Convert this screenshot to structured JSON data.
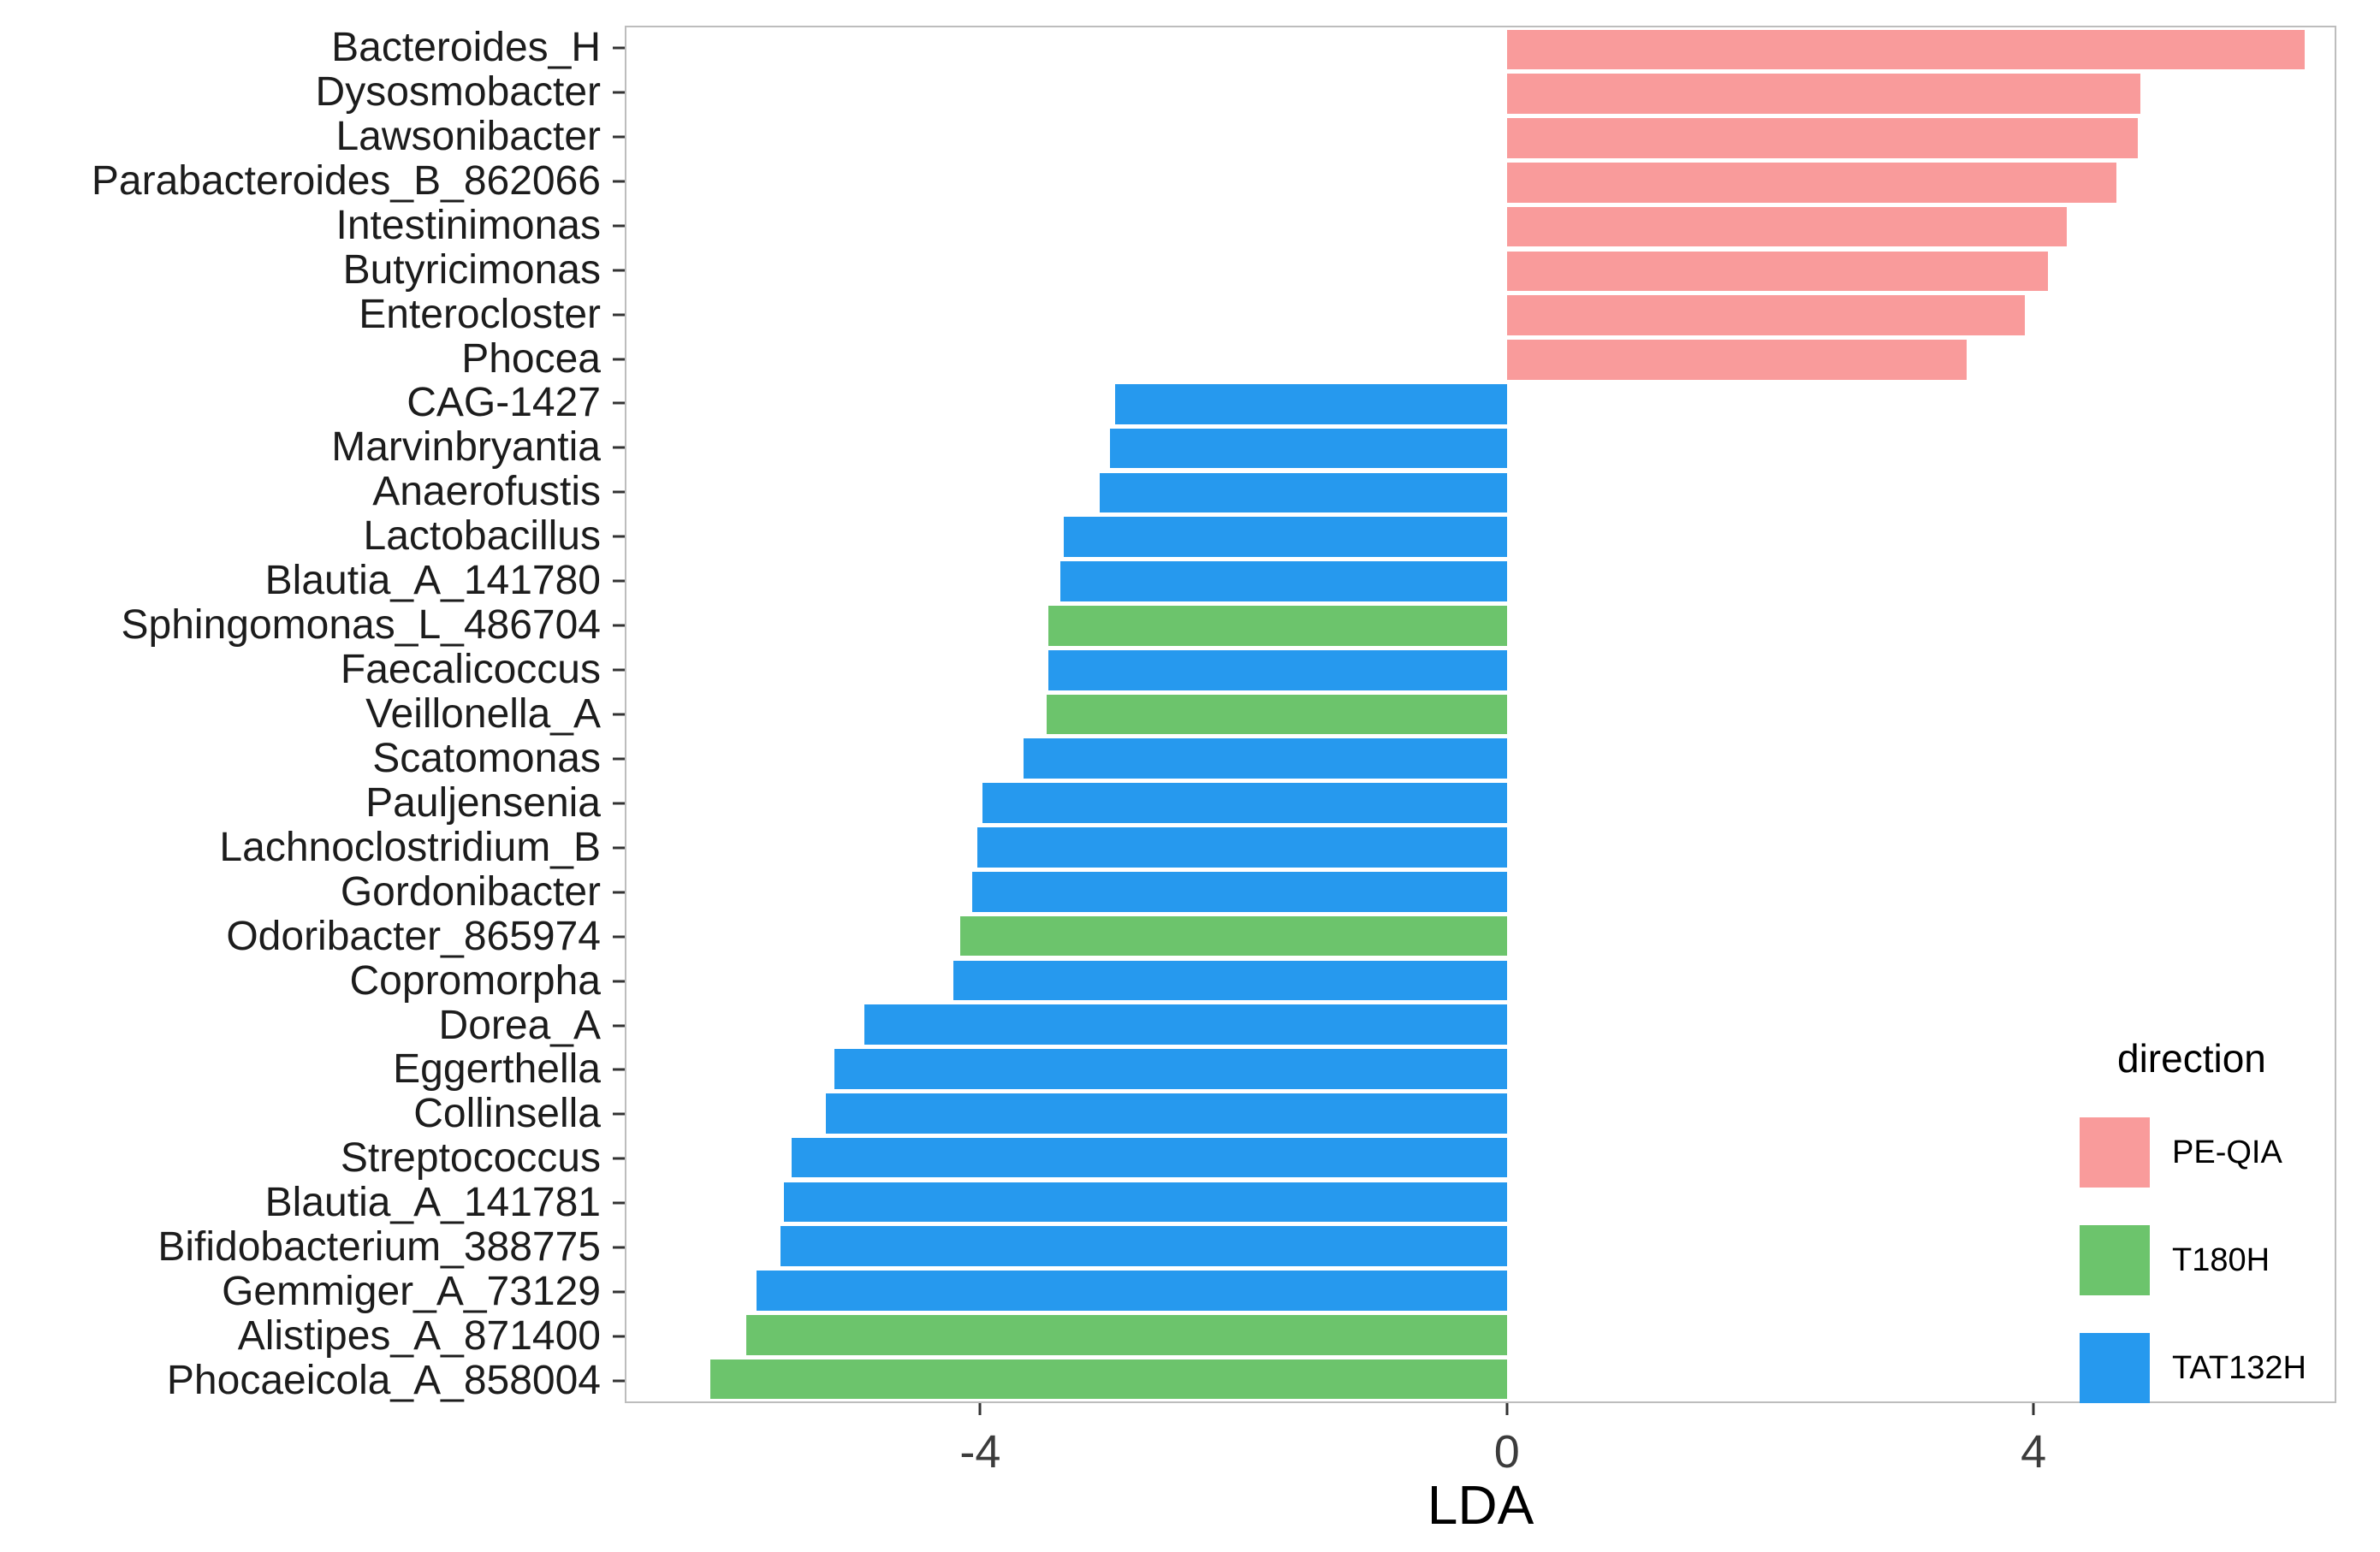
{
  "chart_data": {
    "type": "bar",
    "orientation": "horizontal",
    "title": "",
    "xlabel": "LDA",
    "ylabel": "",
    "xlim": [
      -6.7,
      6.3
    ],
    "x_ticks": [
      -4,
      0,
      4
    ],
    "grid": false,
    "legend": {
      "title": "direction",
      "position": "inside-right",
      "items": [
        {
          "label": "PE-QIA",
          "color": "#F99B9B"
        },
        {
          "label": "T180H",
          "color": "#6CC46C"
        },
        {
          "label": "TAT132H",
          "color": "#2699EE"
        }
      ]
    },
    "bars": [
      {
        "label": "Bacteroides_H",
        "value": 6.07,
        "direction": "PE-QIA"
      },
      {
        "label": "Dysosmobacter",
        "value": 4.82,
        "direction": "PE-QIA"
      },
      {
        "label": "Lawsonibacter",
        "value": 4.8,
        "direction": "PE-QIA"
      },
      {
        "label": "Parabacteroides_B_862066",
        "value": 4.64,
        "direction": "PE-QIA"
      },
      {
        "label": "Intestinimonas",
        "value": 4.26,
        "direction": "PE-QIA"
      },
      {
        "label": "Butyricimonas",
        "value": 4.12,
        "direction": "PE-QIA"
      },
      {
        "label": "Enterocloster",
        "value": 3.94,
        "direction": "PE-QIA"
      },
      {
        "label": "Phocea",
        "value": 3.5,
        "direction": "PE-QIA"
      },
      {
        "label": "CAG-1427",
        "value": -2.98,
        "direction": "TAT132H"
      },
      {
        "label": "Marvinbryantia",
        "value": -3.02,
        "direction": "TAT132H"
      },
      {
        "label": "Anaerofustis",
        "value": -3.1,
        "direction": "TAT132H"
      },
      {
        "label": "Lactobacillus",
        "value": -3.37,
        "direction": "TAT132H"
      },
      {
        "label": "Blautia_A_141780",
        "value": -3.4,
        "direction": "TAT132H"
      },
      {
        "label": "Sphingomonas_L_486704",
        "value": -3.49,
        "direction": "T180H"
      },
      {
        "label": "Faecalicoccus",
        "value": -3.49,
        "direction": "TAT132H"
      },
      {
        "label": "Veillonella_A",
        "value": -3.5,
        "direction": "T180H"
      },
      {
        "label": "Scatomonas",
        "value": -3.68,
        "direction": "TAT132H"
      },
      {
        "label": "Pauljensenia",
        "value": -3.99,
        "direction": "TAT132H"
      },
      {
        "label": "Lachnoclostridium_B",
        "value": -4.03,
        "direction": "TAT132H"
      },
      {
        "label": "Gordonibacter",
        "value": -4.07,
        "direction": "TAT132H"
      },
      {
        "label": "Odoribacter_865974",
        "value": -4.16,
        "direction": "T180H"
      },
      {
        "label": "Copromorpha",
        "value": -4.21,
        "direction": "TAT132H"
      },
      {
        "label": "Dorea_A",
        "value": -4.89,
        "direction": "TAT132H"
      },
      {
        "label": "Eggerthella",
        "value": -5.12,
        "direction": "TAT132H"
      },
      {
        "label": "Collinsella",
        "value": -5.18,
        "direction": "TAT132H"
      },
      {
        "label": "Streptococcus",
        "value": -5.44,
        "direction": "TAT132H"
      },
      {
        "label": "Blautia_A_141781",
        "value": -5.5,
        "direction": "TAT132H"
      },
      {
        "label": "Bifidobacterium_388775",
        "value": -5.53,
        "direction": "TAT132H"
      },
      {
        "label": "Gemmiger_A_73129",
        "value": -5.71,
        "direction": "TAT132H"
      },
      {
        "label": "Alistipes_A_871400",
        "value": -5.79,
        "direction": "T180H"
      },
      {
        "label": "Phocaeicola_A_858004",
        "value": -6.06,
        "direction": "T180H"
      }
    ]
  }
}
